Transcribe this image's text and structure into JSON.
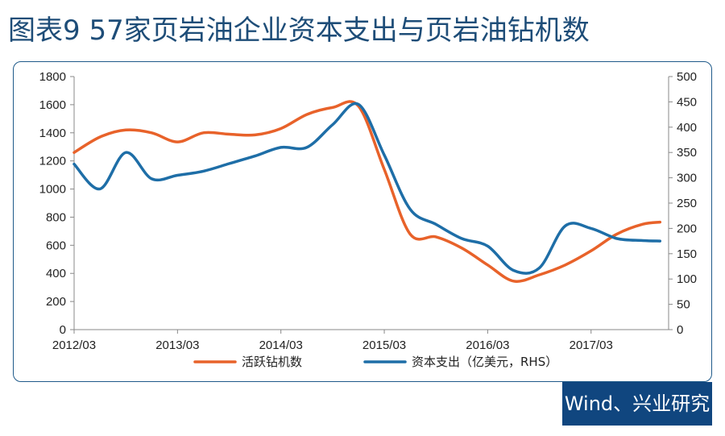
{
  "title": "图表9  57家页岩油企业资本支出与页岩油钻机数",
  "source": "Wind、兴业研究",
  "chart_data": {
    "type": "line",
    "title": "",
    "x_ticks": [
      "2012/03",
      "2013/03",
      "2014/03",
      "2015/03",
      "2016/03",
      "2017/03"
    ],
    "y_left": {
      "range": [
        0,
        1800
      ],
      "ticks": [
        "0",
        "200",
        "400",
        "600",
        "800",
        "1000",
        "1200",
        "1400",
        "1600",
        "1800"
      ]
    },
    "y_right": {
      "range": [
        0,
        500
      ],
      "ticks": [
        "0",
        "50",
        "100",
        "150",
        "200",
        "250",
        "300",
        "350",
        "400",
        "450",
        "500"
      ]
    },
    "series": [
      {
        "name": "活跃钻机数",
        "axis": "left",
        "color": "#e8622a",
        "points": [
          [
            "2012/03",
            1260
          ],
          [
            "2012/06",
            1370
          ],
          [
            "2012/09",
            1420
          ],
          [
            "2012/12",
            1400
          ],
          [
            "2013/03",
            1335
          ],
          [
            "2013/06",
            1400
          ],
          [
            "2013/09",
            1390
          ],
          [
            "2013/12",
            1385
          ],
          [
            "2014/03",
            1430
          ],
          [
            "2014/06",
            1530
          ],
          [
            "2014/09",
            1580
          ],
          [
            "2014/12",
            1590
          ],
          [
            "2015/03",
            1140
          ],
          [
            "2015/06",
            680
          ],
          [
            "2015/09",
            660
          ],
          [
            "2015/12",
            580
          ],
          [
            "2016/03",
            460
          ],
          [
            "2016/06",
            345
          ],
          [
            "2016/09",
            390
          ],
          [
            "2016/12",
            460
          ],
          [
            "2017/03",
            560
          ],
          [
            "2017/06",
            680
          ],
          [
            "2017/09",
            750
          ],
          [
            "2017/11",
            765
          ]
        ]
      },
      {
        "name": "资本支出（亿美元，RHS）",
        "axis": "right",
        "color": "#1e6ea7",
        "points": [
          [
            "2012/03",
            327
          ],
          [
            "2012/06",
            278
          ],
          [
            "2012/09",
            350
          ],
          [
            "2012/12",
            298
          ],
          [
            "2013/03",
            305
          ],
          [
            "2013/06",
            313
          ],
          [
            "2013/09",
            328
          ],
          [
            "2013/12",
            343
          ],
          [
            "2014/03",
            360
          ],
          [
            "2014/06",
            360
          ],
          [
            "2014/09",
            405
          ],
          [
            "2014/12",
            445
          ],
          [
            "2015/03",
            345
          ],
          [
            "2015/06",
            238
          ],
          [
            "2015/09",
            208
          ],
          [
            "2015/12",
            180
          ],
          [
            "2016/03",
            165
          ],
          [
            "2016/06",
            117
          ],
          [
            "2016/09",
            122
          ],
          [
            "2016/12",
            205
          ],
          [
            "2017/03",
            200
          ],
          [
            "2017/06",
            180
          ],
          [
            "2017/09",
            176
          ],
          [
            "2017/11",
            175
          ]
        ]
      }
    ],
    "legend_position": "bottom"
  }
}
